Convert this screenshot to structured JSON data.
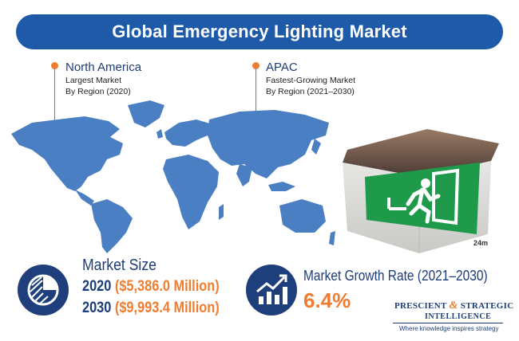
{
  "title": "Global Emergency Lighting Market",
  "regions": [
    {
      "name": "North America",
      "line1": "Largest Market",
      "line2": "By Region (2020)"
    },
    {
      "name": "APAC",
      "line1": "Fastest-Growing Market",
      "line2": "By Region (2021–2030)"
    }
  ],
  "market_size": {
    "label": "Market Size",
    "rows": [
      {
        "year": "2020",
        "value": "($5,386.0 Million)"
      },
      {
        "year": "2030",
        "value": "($9,993.4 Million)"
      }
    ]
  },
  "growth": {
    "label": "Market Growth Rate (2021–2030)",
    "value": "6.4%"
  },
  "sign": {
    "text": "24m"
  },
  "logo": {
    "word1": "PRESCIENT",
    "amp": "&",
    "word2": "STRATEGIC",
    "word3": "INTELLIGENCE",
    "tagline": "Where knowledge inspires strategy"
  },
  "colors": {
    "banner": "#1e5aa8",
    "navy": "#1d3d7a",
    "accent": "#ef7d31",
    "map": "#4a7fc4",
    "sign_green": "#1f9a4a"
  },
  "icons": [
    "world-map-icon",
    "exit-sign-icon",
    "pie-chart-icon",
    "growth-chart-icon",
    "pin-icon"
  ]
}
